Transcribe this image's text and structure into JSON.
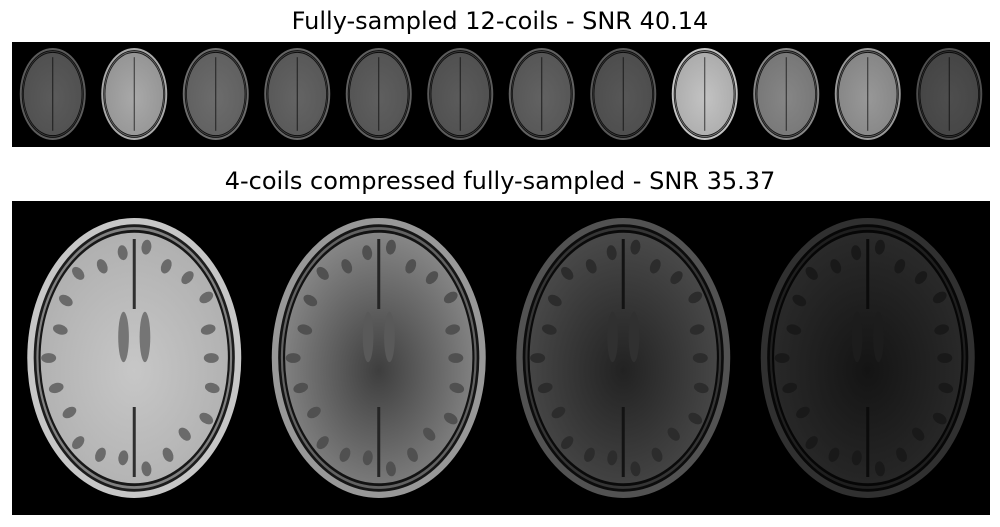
{
  "figure": {
    "top_title": "Fully-sampled 12-coils - SNR 40.14",
    "bottom_title": "4-coils compressed fully-sampled - SNR 35.37"
  },
  "top_strip": {
    "coil_brightness": [
      0.42,
      0.78,
      0.5,
      0.46,
      0.44,
      0.42,
      0.45,
      0.4,
      0.9,
      0.62,
      0.7,
      0.36
    ]
  },
  "bottom_row": {
    "coil_brightness": [
      0.92,
      0.7,
      0.38,
      0.22
    ]
  },
  "colors": {
    "background": "#000000",
    "tissue": "#bfbfbf"
  }
}
